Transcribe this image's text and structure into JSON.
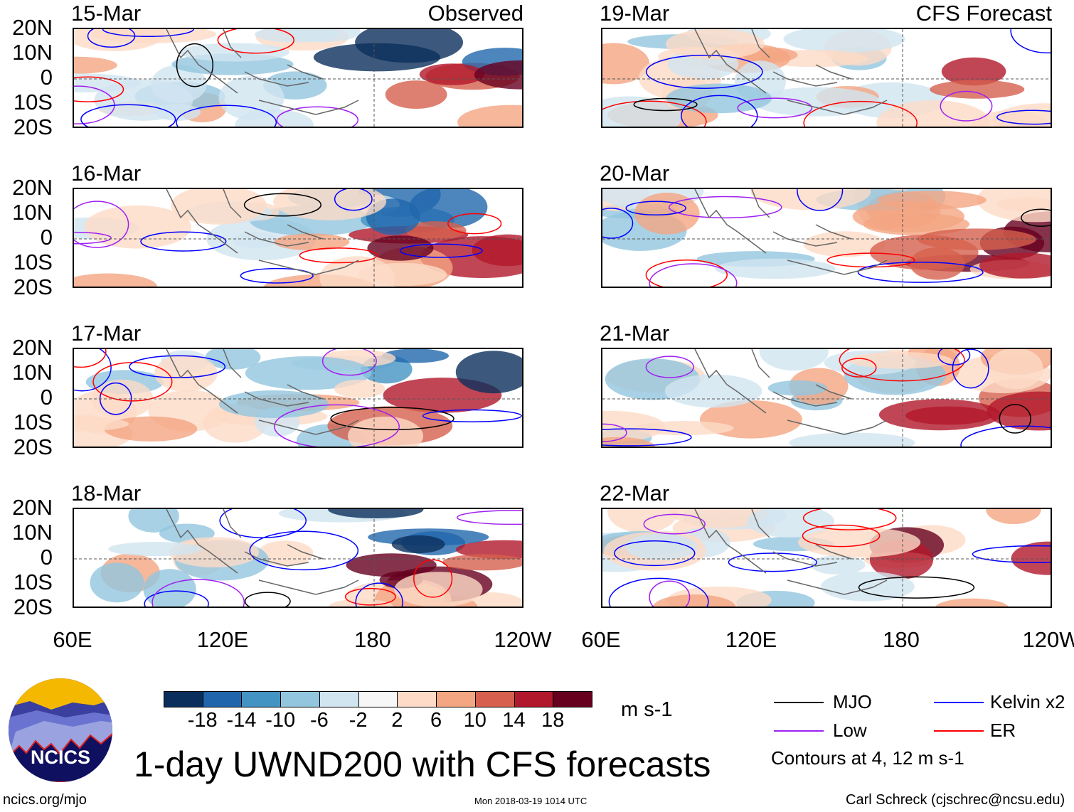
{
  "panels": [
    {
      "date": "15-Mar",
      "tag": "Observed",
      "column": "left",
      "row": 0
    },
    {
      "date": "16-Mar",
      "tag": "",
      "column": "left",
      "row": 1
    },
    {
      "date": "17-Mar",
      "tag": "",
      "column": "left",
      "row": 2
    },
    {
      "date": "18-Mar",
      "tag": "",
      "column": "left",
      "row": 3
    },
    {
      "date": "19-Mar",
      "tag": "CFS Forecast",
      "column": "right",
      "row": 0
    },
    {
      "date": "20-Mar",
      "tag": "",
      "column": "right",
      "row": 1
    },
    {
      "date": "21-Mar",
      "tag": "",
      "column": "right",
      "row": 2
    },
    {
      "date": "22-Mar",
      "tag": "",
      "column": "right",
      "row": 3
    }
  ],
  "lat_labels": [
    "20N",
    "10N",
    "0",
    "10S",
    "20S"
  ],
  "lon_labels": [
    "60E",
    "120E",
    "180",
    "120W"
  ],
  "colorbar": {
    "colors": [
      "#0b2f5c",
      "#2166ac",
      "#4393c3",
      "#92c5de",
      "#d1e5f0",
      "#f7f7f7",
      "#fddbc7",
      "#f4a582",
      "#d6604d",
      "#b2182b",
      "#67001f"
    ],
    "labels": [
      "-18",
      "-14",
      "-10",
      "-6",
      "-2",
      "2",
      "6",
      "10",
      "14",
      "18"
    ],
    "units": "m s-1"
  },
  "title": "1-day UWND200 with CFS forecasts",
  "logo_text": "NCICS",
  "legend": {
    "items": [
      {
        "label": "MJO",
        "color": "#000000"
      },
      {
        "label": "Kelvin x2",
        "color": "#0000ff"
      },
      {
        "label": "Low",
        "color": "#a020f0"
      },
      {
        "label": "ER",
        "color": "#ff0000"
      }
    ],
    "note": "Contours at 4, 12 m s-1"
  },
  "footer": {
    "url": "ncics.org/mjo",
    "timestamp": "Mon 2018-03-19 1014 UTC",
    "author": "Carl Schreck (cjschrec@ncsu.edu)"
  }
}
